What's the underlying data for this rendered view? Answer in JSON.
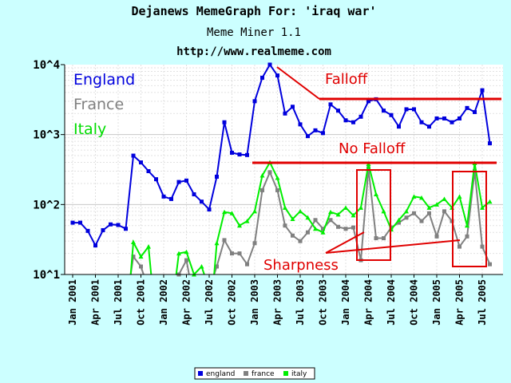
{
  "header": {
    "title": "Dejanews MemeGraph For: 'iraq war'",
    "subtitle": "Meme Miner 1.1",
    "url": "http://www.realmeme.com"
  },
  "colors": {
    "background": "#ccffff",
    "plot_background": "#ffffff",
    "england": "#0000dd",
    "france": "#808080",
    "italy": "#00ee00",
    "annotation": "#e00000"
  },
  "chart_data": {
    "type": "line",
    "y_scale": "log",
    "ylim": [
      10,
      10000
    ],
    "y_ticks": [
      {
        "value": 10,
        "label": "10^1"
      },
      {
        "value": 100,
        "label": "10^2"
      },
      {
        "value": 1000,
        "label": "10^3"
      },
      {
        "value": 10000,
        "label": "10^4"
      }
    ],
    "x_tick_labels": [
      "Jan 2001",
      "Apr 2001",
      "Jul 2001",
      "Oct 2001",
      "Jan 2002",
      "Apr 2002",
      "Jul 2002",
      "Oct 2002",
      "Jan 2003",
      "Apr 2003",
      "Jul 2003",
      "Oct 2003",
      "Jan 2004",
      "Apr 2004",
      "Jul 2004",
      "Oct 2004",
      "Jan 2005",
      "Apr 2005",
      "Jul 2005"
    ],
    "x_months": [
      "2001-01",
      "2001-02",
      "2001-03",
      "2001-04",
      "2001-05",
      "2001-06",
      "2001-07",
      "2001-08",
      "2001-09",
      "2001-10",
      "2001-11",
      "2001-12",
      "2002-01",
      "2002-02",
      "2002-03",
      "2002-04",
      "2002-05",
      "2002-06",
      "2002-07",
      "2002-08",
      "2002-09",
      "2002-10",
      "2002-11",
      "2002-12",
      "2003-01",
      "2003-02",
      "2003-03",
      "2003-04",
      "2003-05",
      "2003-06",
      "2003-07",
      "2003-08",
      "2003-09",
      "2003-10",
      "2003-11",
      "2003-12",
      "2004-01",
      "2004-02",
      "2004-03",
      "2004-04",
      "2004-05",
      "2004-06",
      "2004-07",
      "2004-08",
      "2004-09",
      "2004-10",
      "2004-11",
      "2004-12",
      "2005-01",
      "2005-02",
      "2005-03",
      "2005-04",
      "2005-05",
      "2005-06",
      "2005-07",
      "2005-08"
    ],
    "series": [
      {
        "name": "england",
        "inline_label": "England",
        "values": [
          55,
          55,
          42,
          26,
          43,
          52,
          51,
          45,
          500,
          400,
          300,
          230,
          130,
          120,
          210,
          220,
          140,
          110,
          85,
          250,
          1500,
          550,
          520,
          510,
          3000,
          6500,
          10000,
          7000,
          2000,
          2500,
          1400,
          950,
          1150,
          1050,
          2700,
          2200,
          1600,
          1500,
          1800,
          3000,
          3200,
          2200,
          1900,
          1300,
          2300,
          2300,
          1500,
          1300,
          1700,
          1700,
          1500,
          1700,
          2400,
          2100,
          4300,
          750
        ]
      },
      {
        "name": "france",
        "inline_label": "France",
        "values": [
          null,
          null,
          null,
          null,
          null,
          null,
          null,
          null,
          18,
          13,
          null,
          null,
          null,
          null,
          10,
          16,
          null,
          null,
          null,
          13,
          31,
          20,
          20,
          14,
          28,
          160,
          290,
          160,
          50,
          36,
          30,
          40,
          60,
          45,
          60,
          48,
          45,
          47,
          16,
          330,
          33,
          33,
          47,
          55,
          65,
          75,
          58,
          75,
          35,
          80,
          58,
          25,
          35,
          300,
          25,
          14
        ]
      },
      {
        "name": "italy",
        "inline_label": "Italy",
        "values": [
          null,
          null,
          null,
          null,
          null,
          null,
          null,
          null,
          29,
          18,
          25,
          null,
          null,
          null,
          20,
          21,
          10,
          13,
          null,
          28,
          78,
          75,
          50,
          58,
          80,
          260,
          400,
          240,
          90,
          62,
          80,
          65,
          45,
          40,
          78,
          72,
          90,
          70,
          90,
          380,
          140,
          80,
          44,
          60,
          80,
          130,
          125,
          90,
          100,
          120,
          90,
          130,
          50,
          390,
          90,
          110
        ]
      }
    ],
    "legend": {
      "position": "bottom-center",
      "entries": [
        "england",
        "france",
        "italy"
      ]
    },
    "annotations": [
      {
        "text": "Falloff"
      },
      {
        "text": "No Falloff"
      },
      {
        "text": "Sharpness"
      }
    ],
    "grid": true
  }
}
